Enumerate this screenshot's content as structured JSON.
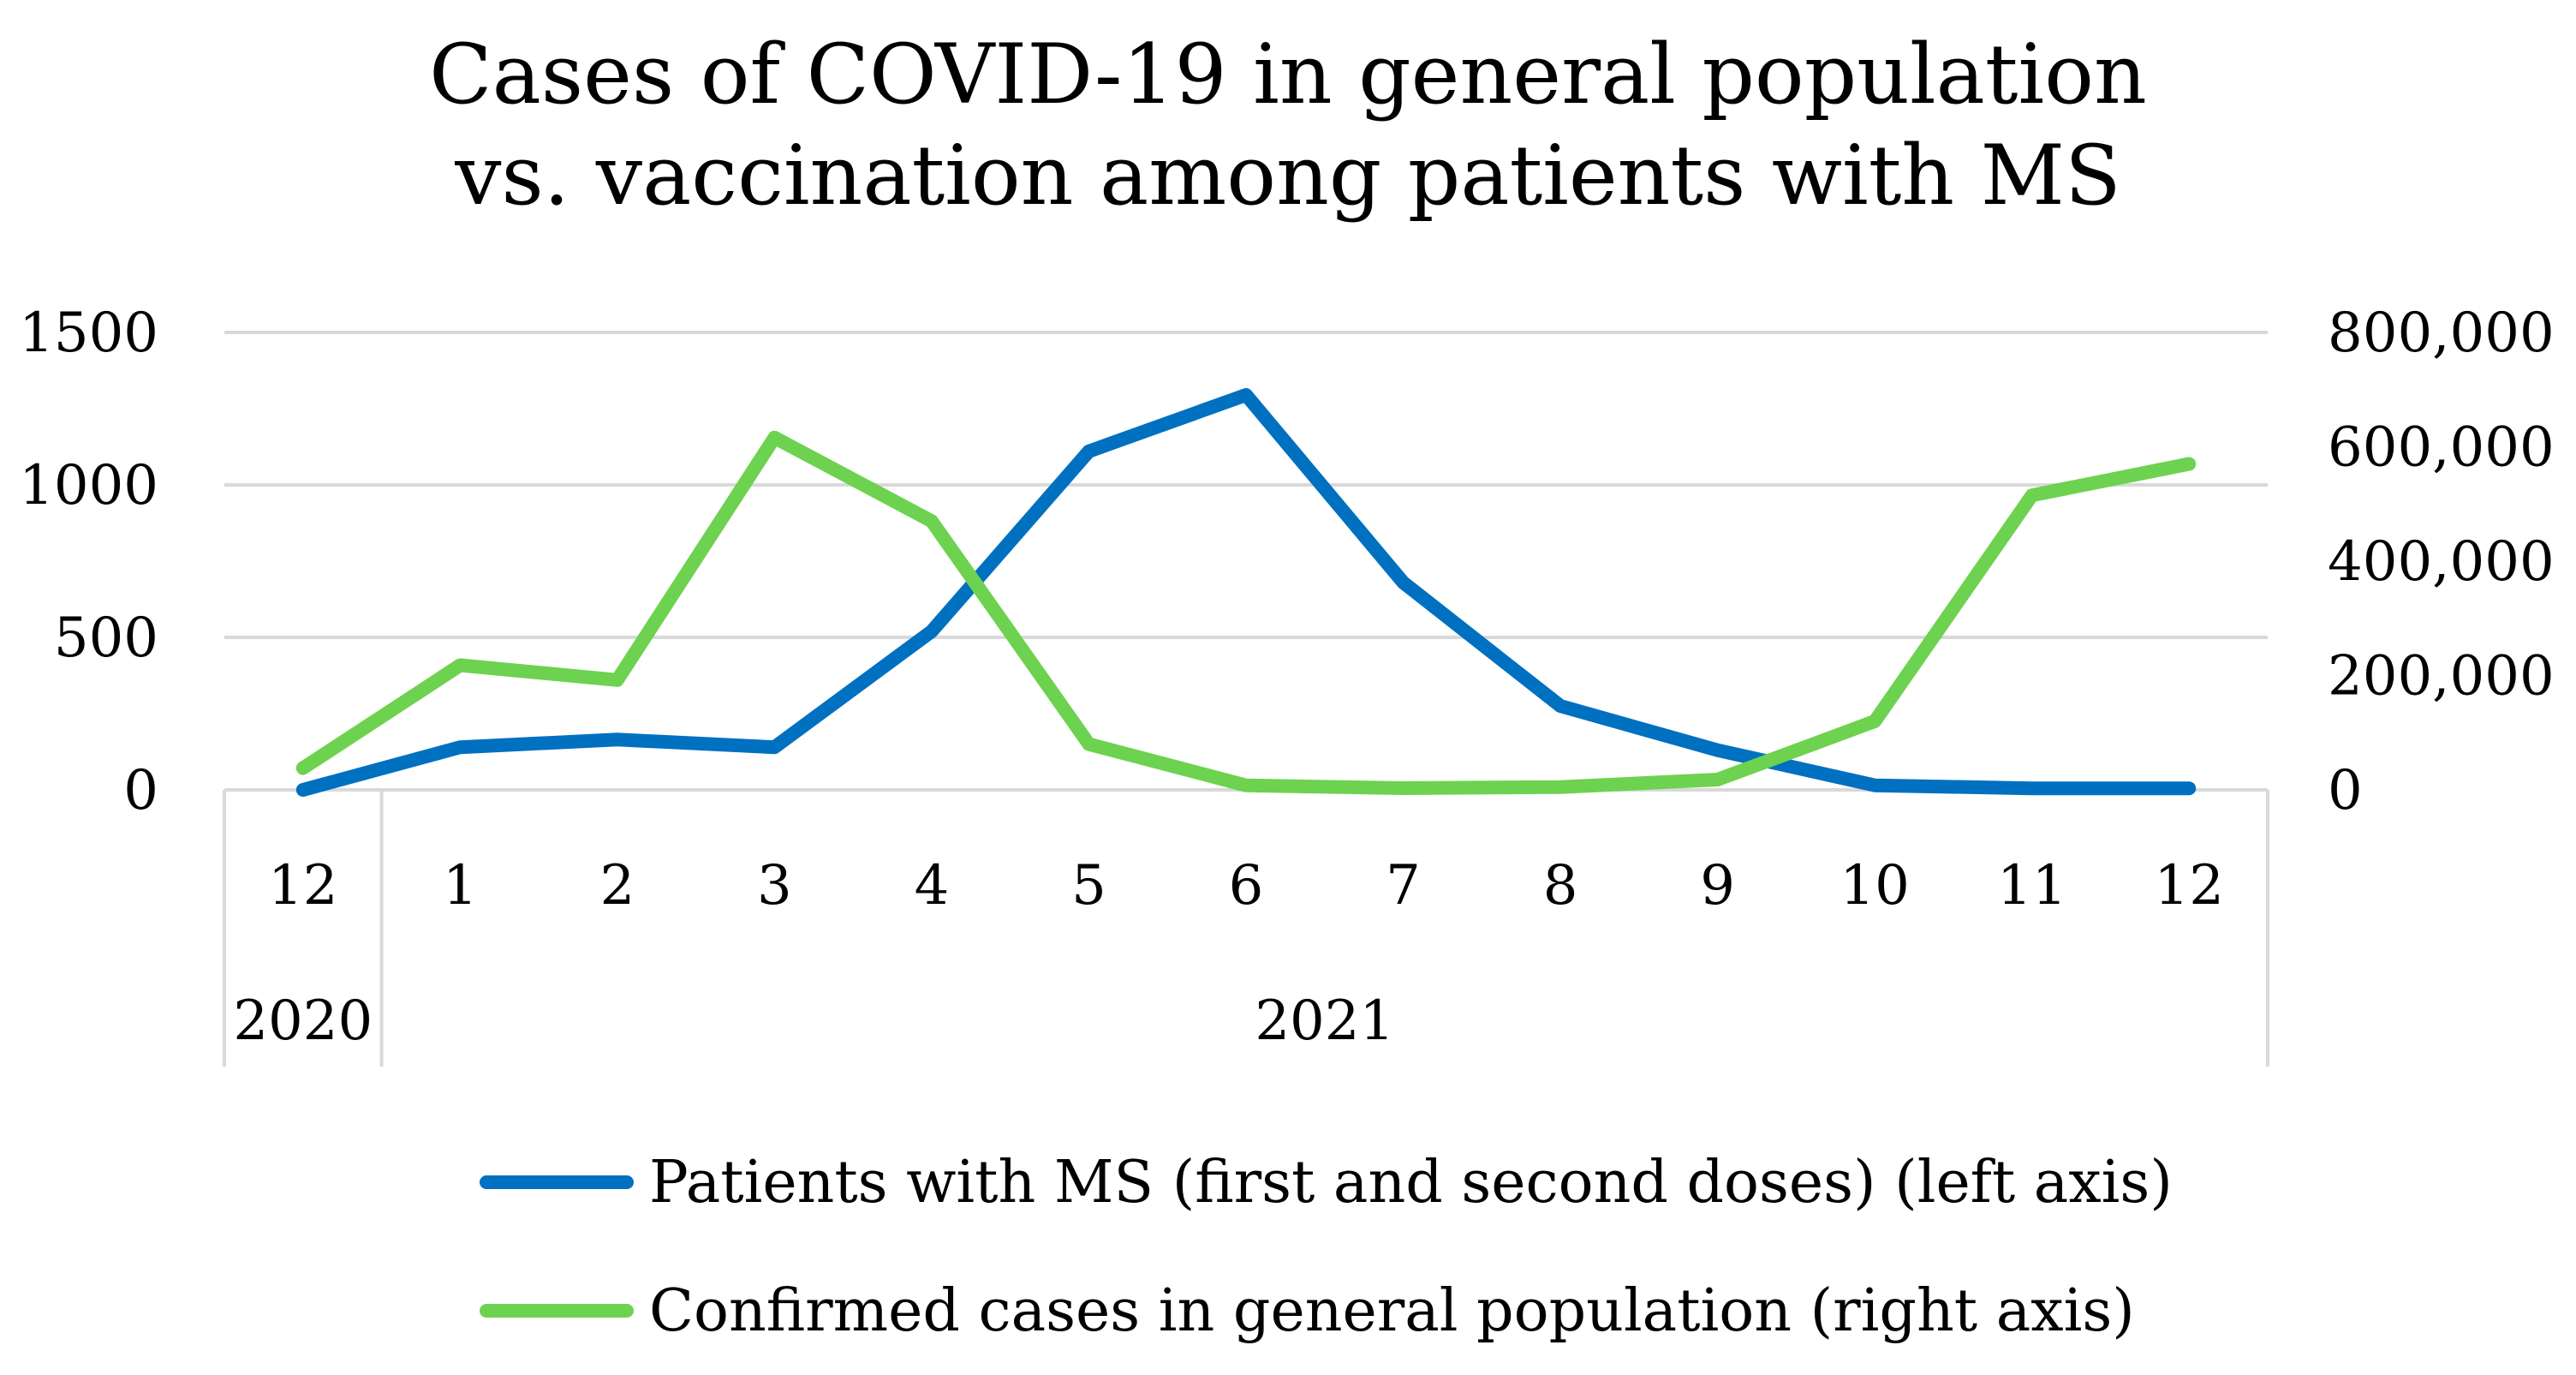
{
  "chart_data": {
    "type": "line",
    "title": [
      "Cases of COVID-19 in general population",
      "vs. vaccination among patients with MS"
    ],
    "categories": [
      "12",
      "1",
      "2",
      "3",
      "4",
      "5",
      "6",
      "7",
      "8",
      "9",
      "10",
      "11",
      "12"
    ],
    "category_groups": [
      {
        "label": "2020",
        "count": 1
      },
      {
        "label": "2021",
        "count": 12
      }
    ],
    "series": [
      {
        "name": "Patients with MS  (first and second doses) (left axis)",
        "axis": "left",
        "color": "#0070C0",
        "values": [
          0,
          140,
          165,
          140,
          520,
          1110,
          1295,
          680,
          275,
          130,
          15,
          5,
          5
        ]
      },
      {
        "name": "Confirmed cases in general population (right axis)",
        "axis": "right",
        "color": "#6DD24F",
        "values": [
          38000,
          218000,
          192000,
          616000,
          470000,
          80000,
          8000,
          3000,
          5000,
          18000,
          120000,
          515000,
          570000
        ]
      }
    ],
    "left_axis": {
      "ylim": [
        0,
        1500
      ],
      "ticks": [
        0,
        500,
        1000,
        1500
      ],
      "tick_labels": [
        "0",
        "500",
        "1000",
        "1500"
      ]
    },
    "right_axis": {
      "ylim": [
        0,
        800000
      ],
      "ticks": [
        0,
        200000,
        400000,
        600000,
        800000
      ],
      "tick_labels": [
        "0",
        "200,000",
        "400,000",
        "600,000",
        "800,000"
      ]
    },
    "grid": true,
    "legend_position": "bottom",
    "gridline_color": "#D9D9D9"
  }
}
